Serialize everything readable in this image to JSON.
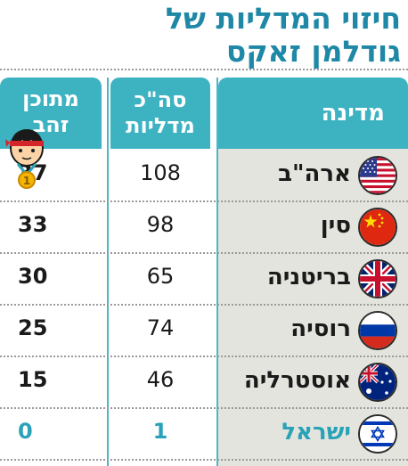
{
  "title": {
    "line1": "חיזוי המדליות של",
    "line2": "גודלמן זאקס"
  },
  "header": {
    "country": "מדינה",
    "total_line1": "סה\"כ",
    "total_line2": "מדליות",
    "gold_line1": "מתוכן",
    "gold_line2": "זהב"
  },
  "rows": [
    {
      "country": "ארה\"ב",
      "total": "108",
      "gold": "37",
      "flag": "usa-flag-icon"
    },
    {
      "country": "סין",
      "total": "98",
      "gold": "33",
      "flag": "china-flag-icon"
    },
    {
      "country": "בריטניה",
      "total": "65",
      "gold": "30",
      "flag": "uk-flag-icon"
    },
    {
      "country": "רוסיה",
      "total": "74",
      "gold": "25",
      "flag": "russia-flag-icon"
    },
    {
      "country": "אוסטרליה",
      "total": "46",
      "gold": "15",
      "flag": "australia-flag-icon"
    },
    {
      "country": "ישראל",
      "total": "1",
      "gold": "0",
      "flag": "israel-flag-icon"
    }
  ],
  "medal_number": "1",
  "colors": {
    "title": "#1e88a6",
    "header": "#3db3c2",
    "israel_highlight": "#2aa3b8",
    "country_column": "#e4e4de"
  }
}
